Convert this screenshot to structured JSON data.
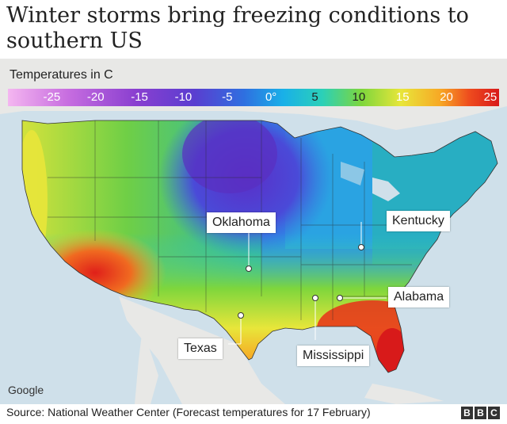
{
  "headline": "Winter storms bring freezing conditions to southern US",
  "legend": {
    "title": "Temperatures in C",
    "ticks": [
      {
        "label": "-25",
        "value": -25
      },
      {
        "label": "-20",
        "value": -20
      },
      {
        "label": "-15",
        "value": -15
      },
      {
        "label": "-10",
        "value": -10
      },
      {
        "label": "-5",
        "value": -5
      },
      {
        "label": "0°",
        "value": 0
      },
      {
        "label": "5",
        "value": 5
      },
      {
        "label": "10",
        "value": 10
      },
      {
        "label": "15",
        "value": 15
      },
      {
        "label": "20",
        "value": 20
      },
      {
        "label": "25",
        "value": 25
      }
    ],
    "range": [
      -30,
      26
    ]
  },
  "places": {
    "oklahoma": "Oklahoma",
    "kentucky": "Kentucky",
    "alabama": "Alabama",
    "texas": "Texas",
    "mississippi": "Mississippi"
  },
  "attribution": "Google",
  "source": "Source: National Weather Center (Forecast temperatures for 17 February)",
  "logo": [
    "B",
    "B",
    "C"
  ],
  "colors": {
    "ocean": "#cfe0ea",
    "land_outside": "#e8e8e6",
    "cold": "#6a3fd0",
    "hot": "#e0201a"
  }
}
